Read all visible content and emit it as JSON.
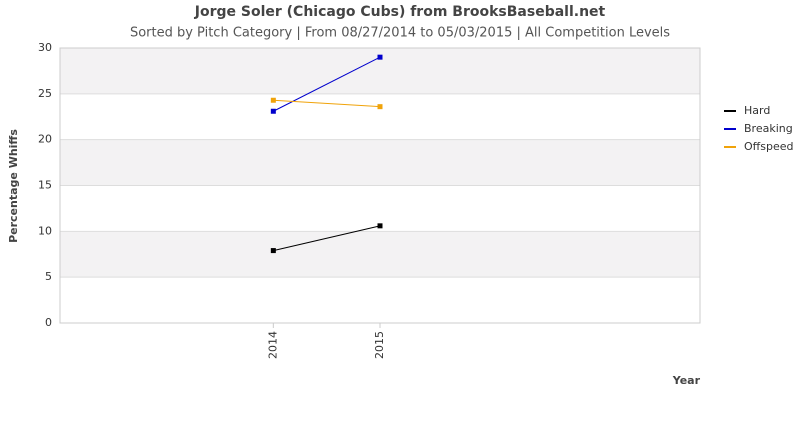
{
  "chart_data": {
    "type": "line",
    "title": "Jorge Soler (Chicago Cubs) from BrooksBaseball.net",
    "subtitle": "Sorted by Pitch Category | From 08/27/2014 to 05/03/2015 | All Competition Levels",
    "x_label": "Year",
    "y_label": "Percentage Whiffs",
    "x": [
      2014,
      2015
    ],
    "xlim": [
      2012,
      2018
    ],
    "xticks": [
      2014,
      2015
    ],
    "ylim": [
      0,
      30
    ],
    "yticks": [
      0,
      5,
      10,
      15,
      20,
      25,
      30
    ],
    "grid": true,
    "legend": "right",
    "series": [
      {
        "name": "Hard",
        "color": "#000000",
        "values": [
          7.9,
          10.6
        ]
      },
      {
        "name": "Breaking",
        "color": "#0000cc",
        "values": [
          23.1,
          29.0
        ]
      },
      {
        "name": "Offspeed",
        "color": "#f0a30a",
        "values": [
          24.3,
          23.6
        ]
      }
    ]
  }
}
